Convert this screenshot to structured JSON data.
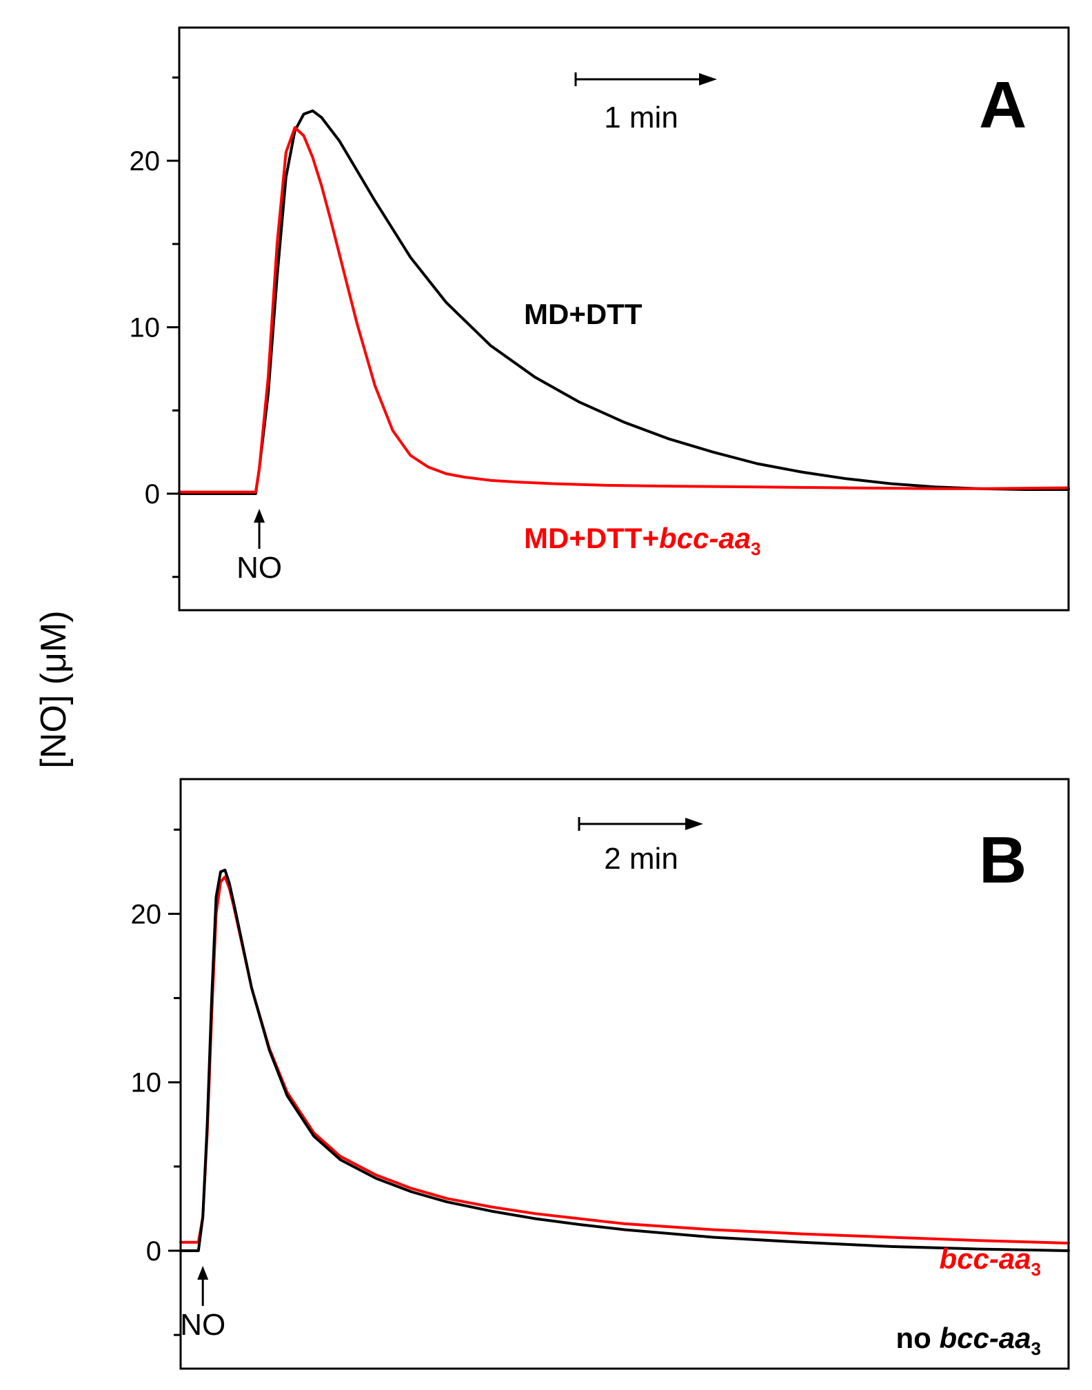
{
  "chart_data": [
    {
      "type": "line",
      "panel": "A",
      "ylabel": "[NO] (μM)",
      "ylim": [
        -7,
        28
      ],
      "yticks": [
        0,
        10,
        20
      ],
      "xlim": [
        0,
        100
      ],
      "scale_bar_label": "1 min",
      "injection_marker": "NO",
      "injection_x": 9,
      "series": [
        {
          "name": "MD+DTT",
          "color": "#000000",
          "x": [
            0,
            8.6,
            9,
            10,
            11,
            12,
            13,
            14,
            15,
            16,
            18,
            20,
            22,
            26,
            30,
            35,
            40,
            45,
            50,
            55,
            60,
            65,
            70,
            75,
            80,
            85,
            90,
            95,
            100
          ],
          "y": [
            0,
            0,
            1.5,
            6,
            13,
            19,
            21.8,
            22.8,
            23,
            22.6,
            21.2,
            19.4,
            17.6,
            14.2,
            11.5,
            8.9,
            7,
            5.5,
            4.3,
            3.3,
            2.5,
            1.8,
            1.3,
            0.9,
            0.6,
            0.4,
            0.3,
            0.25,
            0.25
          ]
        },
        {
          "name_parts": [
            "MD+DTT+",
            "bcc-aa",
            "3"
          ],
          "name": "MD+DTT+bcc-aa3",
          "color": "#ff0000",
          "x": [
            0,
            8.6,
            9,
            10,
            11,
            12,
            13,
            14,
            15,
            16,
            17,
            18,
            20,
            22,
            24,
            26,
            28,
            30,
            32,
            35,
            38,
            42,
            48,
            55,
            65,
            75,
            85,
            90,
            100
          ],
          "y": [
            0.1,
            0.1,
            1.5,
            7,
            15,
            20.5,
            22,
            21.5,
            20.2,
            18.5,
            16.5,
            14.4,
            10.2,
            6.5,
            3.8,
            2.3,
            1.6,
            1.2,
            1,
            0.8,
            0.7,
            0.6,
            0.5,
            0.45,
            0.4,
            0.35,
            0.3,
            0.3,
            0.35
          ]
        }
      ]
    },
    {
      "type": "line",
      "panel": "B",
      "ylabel": "[NO] (μM)",
      "ylim": [
        -7,
        28
      ],
      "yticks": [
        0,
        10,
        20
      ],
      "xlim": [
        0,
        100
      ],
      "scale_bar_label": "2 min",
      "injection_marker": "NO",
      "injection_x": 2.5,
      "series": [
        {
          "name_parts": [
            "",
            "bcc-aa",
            "3"
          ],
          "name": "bcc-aa3",
          "color": "#ff0000",
          "x": [
            0,
            2,
            2.5,
            3,
            3.5,
            4,
            4.5,
            5,
            5.5,
            6,
            7,
            8,
            10,
            12,
            15,
            18,
            22,
            26,
            30,
            35,
            40,
            45,
            50,
            60,
            70,
            80,
            90,
            100
          ],
          "y": [
            0.5,
            0.5,
            2,
            7,
            14,
            20,
            21.9,
            22.2,
            21.5,
            20.4,
            18,
            15.6,
            12,
            9.4,
            7,
            5.6,
            4.5,
            3.7,
            3.1,
            2.6,
            2.2,
            1.9,
            1.6,
            1.25,
            1,
            0.8,
            0.6,
            0.45
          ]
        },
        {
          "name_parts": [
            "no ",
            "bcc-aa",
            "3"
          ],
          "name": "no bcc-aa3",
          "color": "#000000",
          "x": [
            0,
            2,
            2.5,
            3,
            3.5,
            4,
            4.5,
            5,
            5.5,
            6,
            7,
            8,
            10,
            12,
            15,
            18,
            22,
            26,
            30,
            35,
            40,
            45,
            50,
            60,
            70,
            80,
            90,
            100
          ],
          "y": [
            0,
            0,
            2,
            7.5,
            15,
            21,
            22.5,
            22.6,
            21.8,
            20.6,
            18.1,
            15.6,
            11.9,
            9.2,
            6.8,
            5.4,
            4.3,
            3.5,
            2.9,
            2.35,
            1.9,
            1.55,
            1.25,
            0.8,
            0.5,
            0.25,
            0.1,
            0
          ]
        }
      ]
    }
  ]
}
